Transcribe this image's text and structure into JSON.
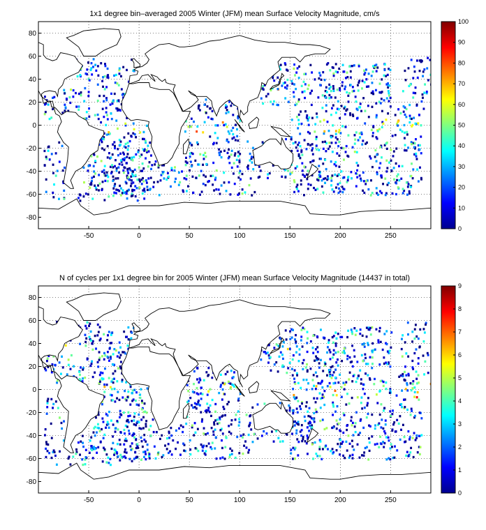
{
  "colors": {
    "background": "#ffffff",
    "axes": "#000000",
    "grid": "#000000",
    "coast": "#000000"
  },
  "colormap": "jet",
  "chart_data": [
    {
      "id": "velocity",
      "type": "heatmap",
      "title": "1x1 degree bin–averaged 2005 Winter (JFM) mean Surface Velocity Magnitude, cm/s",
      "xlim": [
        -100,
        290
      ],
      "ylim": [
        -90,
        90
      ],
      "xticks": [
        -50,
        0,
        50,
        100,
        150,
        200,
        250
      ],
      "yticks": [
        80,
        60,
        40,
        20,
        0,
        -20,
        -40,
        -60,
        -80
      ],
      "grid": true,
      "colorbar": {
        "range": [
          0,
          100
        ],
        "ticks": [
          0,
          10,
          20,
          30,
          40,
          50,
          60,
          70,
          80,
          90,
          100
        ],
        "placement": "right"
      }
    },
    {
      "id": "cycles",
      "type": "heatmap",
      "title": "N of cycles per 1x1 degree bin for 2005 Winter (JFM) mean Surface Velocity Magnitude (14437 in total)",
      "xlim": [
        -100,
        290
      ],
      "ylim": [
        -90,
        90
      ],
      "xticks": [
        -50,
        0,
        50,
        100,
        150,
        200,
        250
      ],
      "yticks": [
        80,
        60,
        40,
        20,
        0,
        -20,
        -40,
        -60,
        -80
      ],
      "grid": true,
      "colorbar": {
        "range": [
          0,
          9
        ],
        "ticks": [
          0,
          1,
          2,
          3,
          4,
          5,
          6,
          7,
          8,
          9
        ],
        "placement": "right"
      }
    }
  ]
}
